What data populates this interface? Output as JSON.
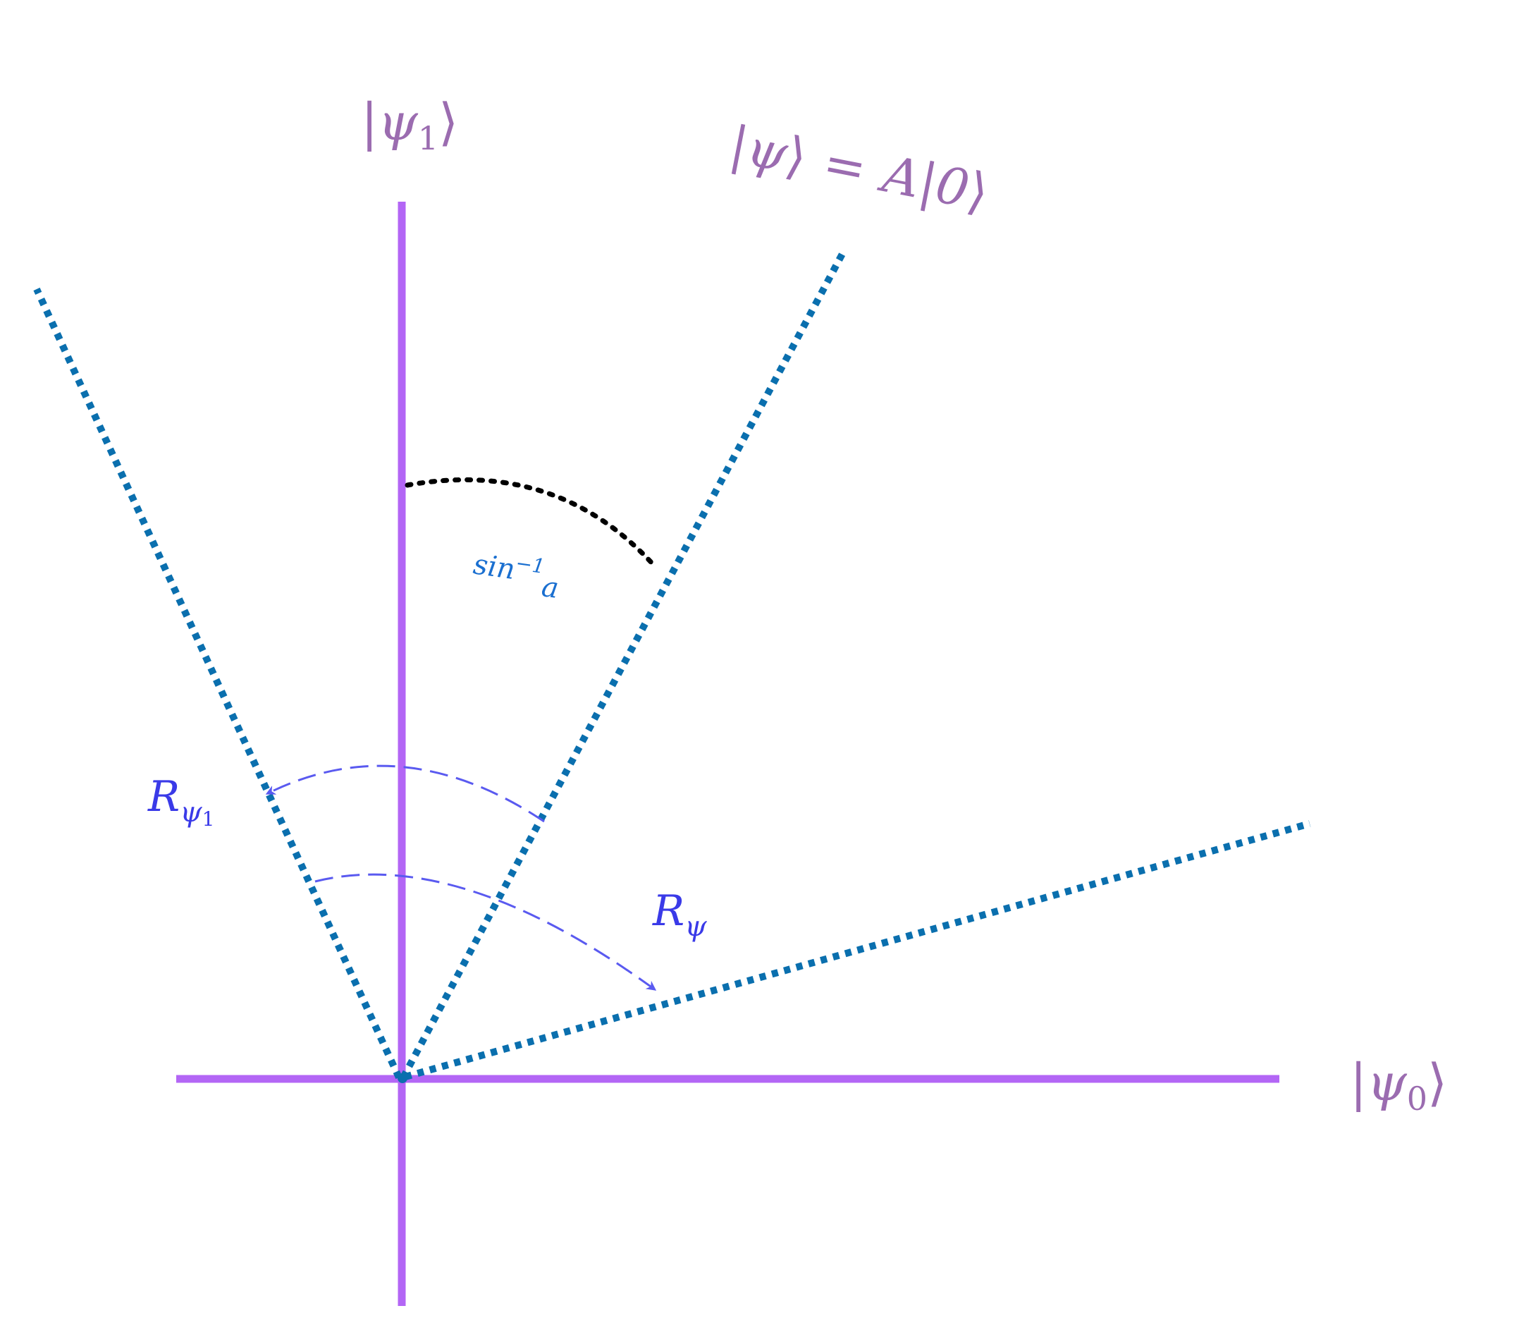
{
  "labels": {
    "psi1_axis": "|ψ₁⟩",
    "psi0_axis": "|ψ₀⟩",
    "psi_state": "|ψ⟩ = A|0⟩",
    "angle": "sin⁻¹a",
    "r_psi1": "Rψ₁",
    "r_psi": "Rψ"
  },
  "label_parts": {
    "psi1_axis": {
      "bra": "|",
      "symbol": "ψ",
      "sub": "1",
      "ket": "⟩"
    },
    "psi0_axis": {
      "bra": "|",
      "symbol": "ψ",
      "sub": "0",
      "ket": "⟩"
    },
    "psi_state": {
      "lhs_bra": "|",
      "lhs_symbol": "ψ",
      "lhs_ket": "⟩",
      "eq": "=",
      "op": "A",
      "rhs_bra": "|",
      "rhs_value": "0",
      "rhs_ket": "⟩"
    },
    "angle": {
      "fn": "sin",
      "exp": "−1",
      "arg": "a"
    },
    "r_psi1": {
      "symbol": "R",
      "sub": "ψ",
      "subsub": "1"
    },
    "r_psi": {
      "symbol": "R",
      "sub": "ψ"
    }
  },
  "colors": {
    "axis": "#b366f5",
    "state_line": "#0a6fae",
    "label_purple": "#9b6cb0",
    "reflection_arrow": "#5a5af0",
    "reflection_label": "#3a3ae8",
    "angle_arc": "#000000",
    "angle_label": "#1a6fd0"
  }
}
